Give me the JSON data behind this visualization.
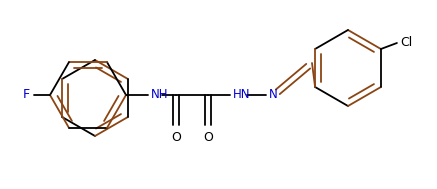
{
  "bg_color": "#ffffff",
  "line_color": "#000000",
  "aromatic_color": "#8B4513",
  "bond_lw": 1.3,
  "figsize": [
    4.37,
    1.89
  ],
  "dpi": 100,
  "text_color_blue": "#0000CD",
  "label_F": "F",
  "label_Cl": "Cl",
  "label_NH": "NH",
  "label_HN": "HN",
  "label_N": "N",
  "label_O": "O"
}
